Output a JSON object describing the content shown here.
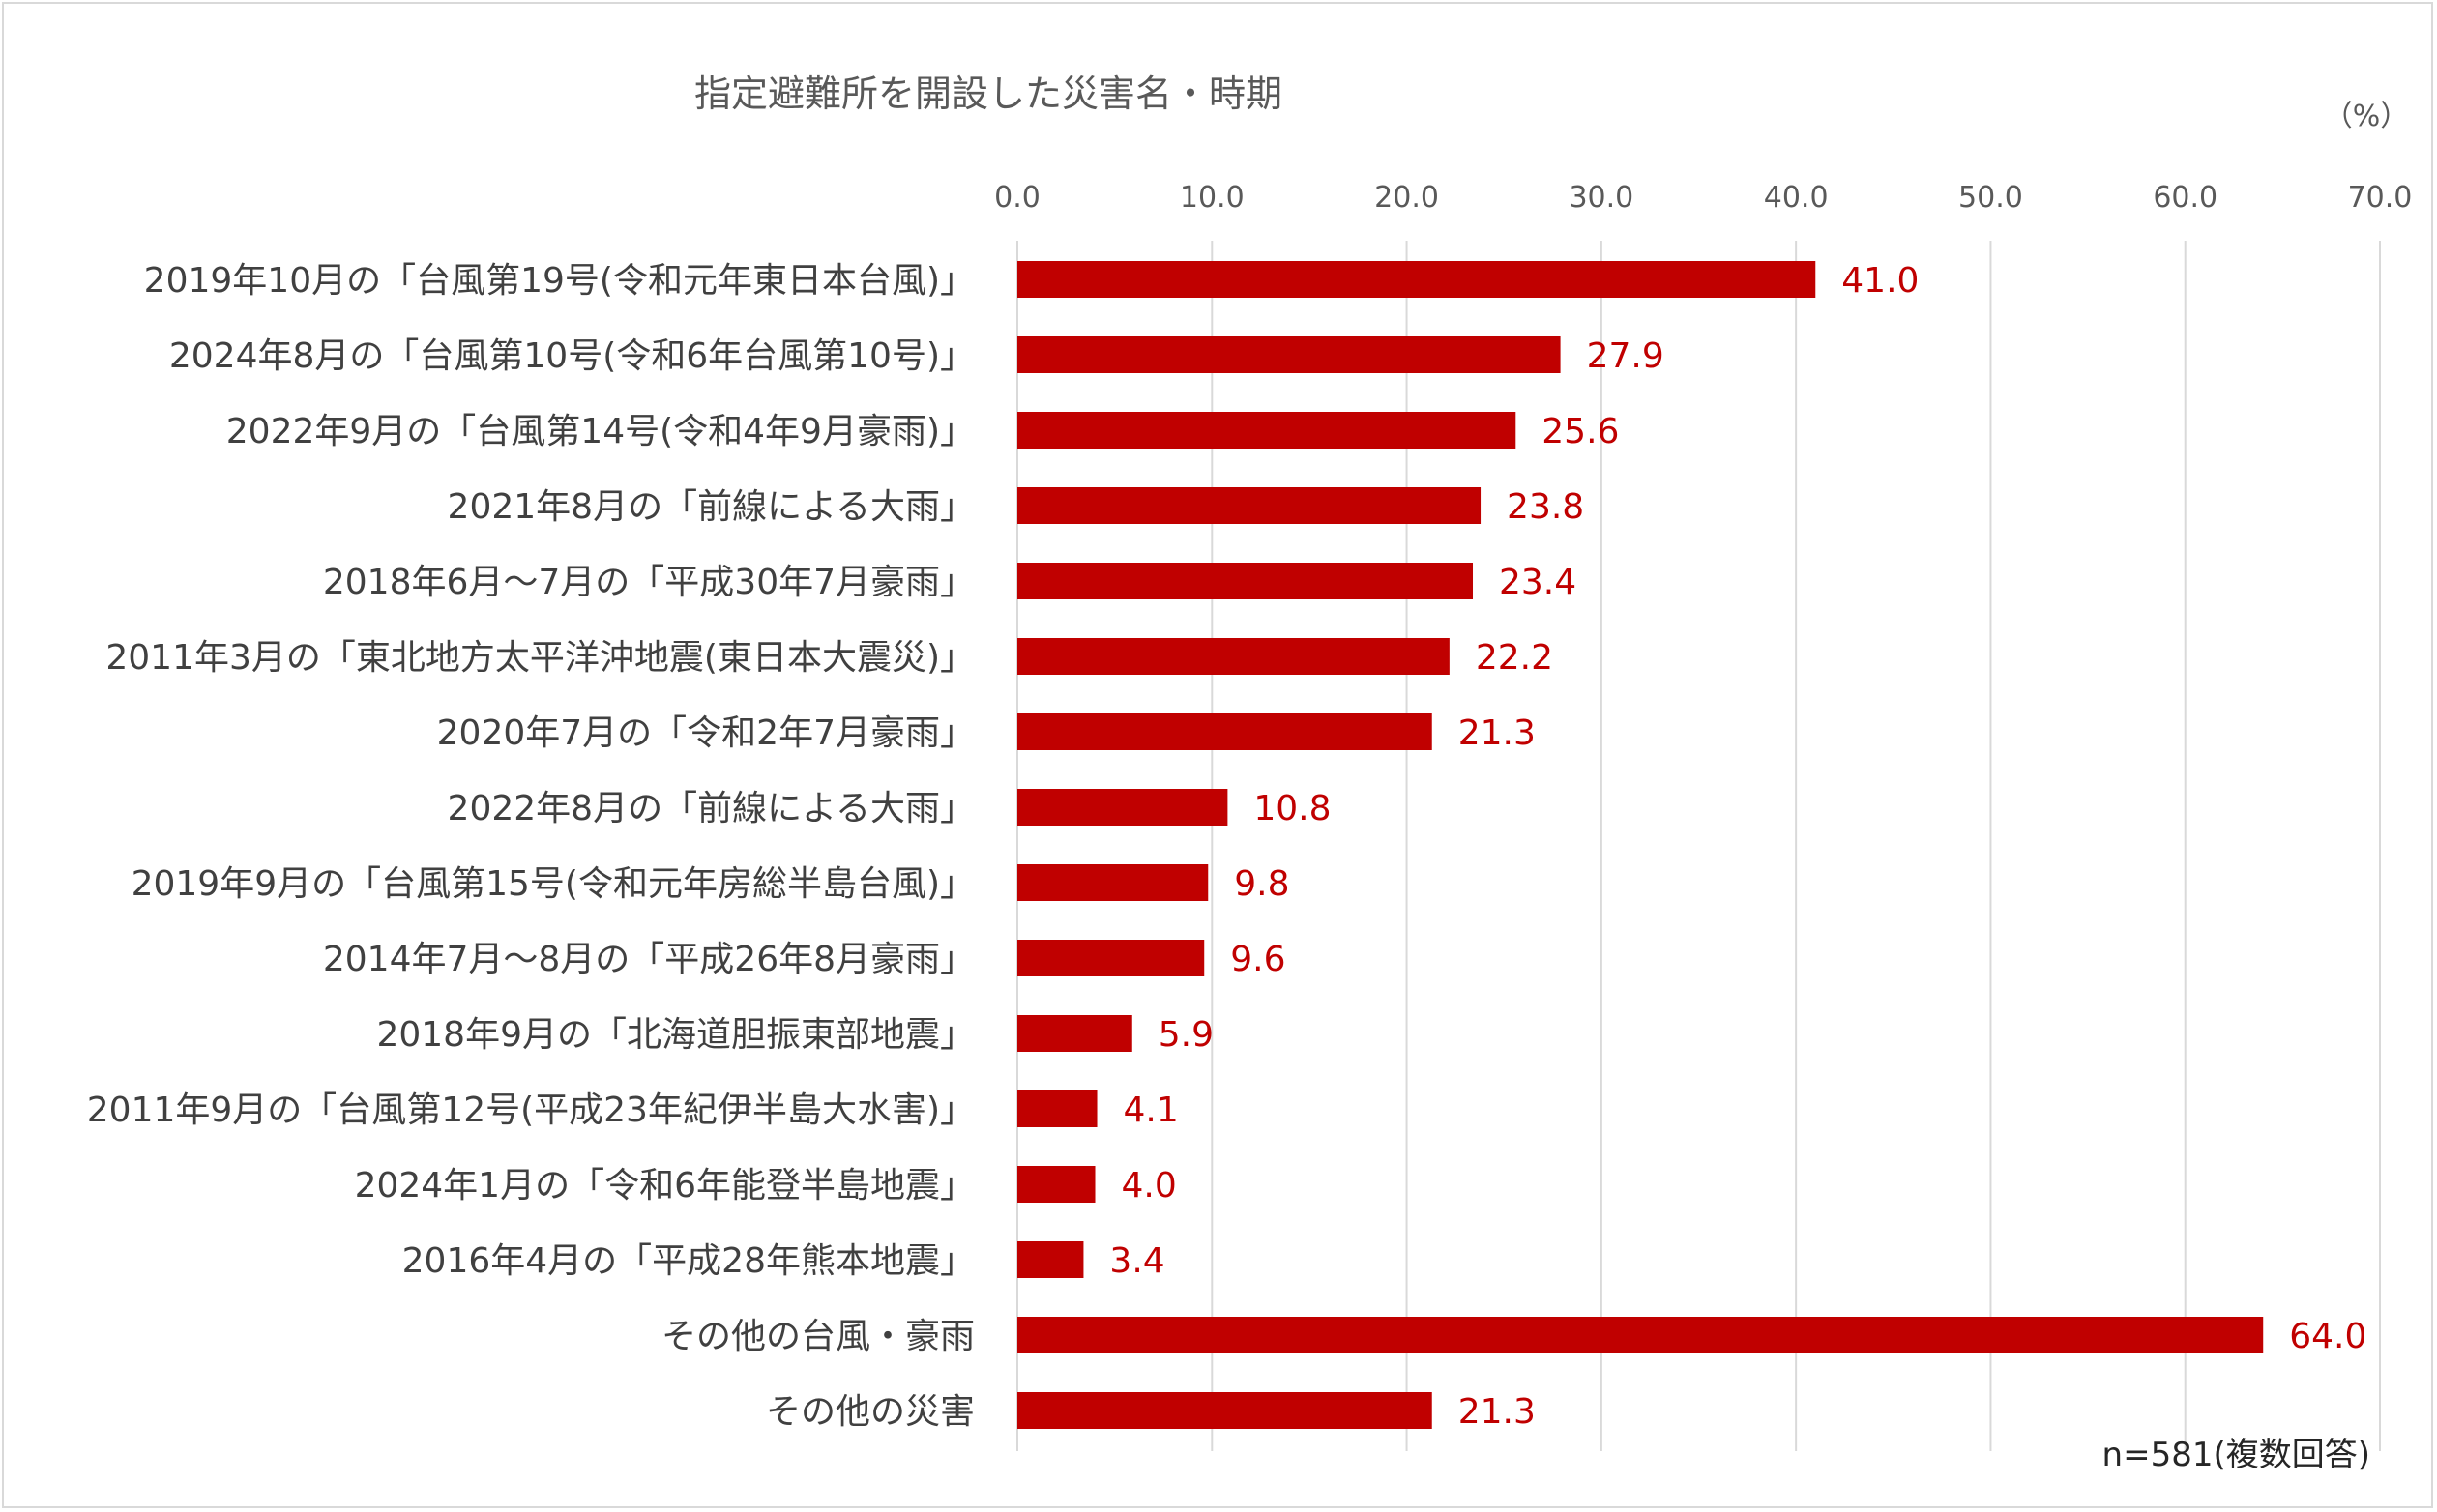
{
  "chart_data": {
    "type": "bar",
    "orientation": "horizontal",
    "title": "指定避難所を開設した災害名・時期",
    "unit_label": "（%）",
    "note": "n=581(複数回答)",
    "xlim": [
      0,
      70
    ],
    "x_ticks": [
      "0.0",
      "10.0",
      "20.0",
      "30.0",
      "40.0",
      "50.0",
      "60.0",
      "70.0"
    ],
    "grid": true,
    "categories": [
      "2019年10月の「台風第19号(令和元年東日本台風)」",
      "2024年8月の「台風第10号(令和6年台風第10号)」",
      "2022年9月の「台風第14号(令和4年9月豪雨)」",
      "2021年8月の「前線による大雨」",
      "2018年6月～7月の「平成30年7月豪雨」",
      "2011年3月の「東北地方太平洋沖地震(東日本大震災)」",
      "2020年7月の「令和2年7月豪雨」",
      "2022年8月の「前線による大雨」",
      "2019年9月の「台風第15号(令和元年房総半島台風)」",
      "2014年7月～8月の「平成26年8月豪雨」",
      "2018年9月の「北海道胆振東部地震」",
      "2011年9月の「台風第12号(平成23年紀伊半島大水害)」",
      "2024年1月の「令和6年能登半島地震」",
      "2016年4月の「平成28年熊本地震」",
      "その他の台風・豪雨",
      "その他の災害"
    ],
    "values": [
      41.0,
      27.9,
      25.6,
      23.8,
      23.4,
      22.2,
      21.3,
      10.8,
      9.8,
      9.6,
      5.9,
      4.1,
      4.0,
      3.4,
      64.0,
      21.3
    ],
    "value_labels": [
      "41.0",
      "27.9",
      "25.6",
      "23.8",
      "23.4",
      "22.2",
      "21.3",
      "10.8",
      "9.8",
      "9.6",
      "5.9",
      "4.1",
      "4.0",
      "3.4",
      "64.0",
      "21.3"
    ],
    "bar_color": "#c00000",
    "label_color": "#c00000",
    "grid_color": "#d9d9d9"
  }
}
